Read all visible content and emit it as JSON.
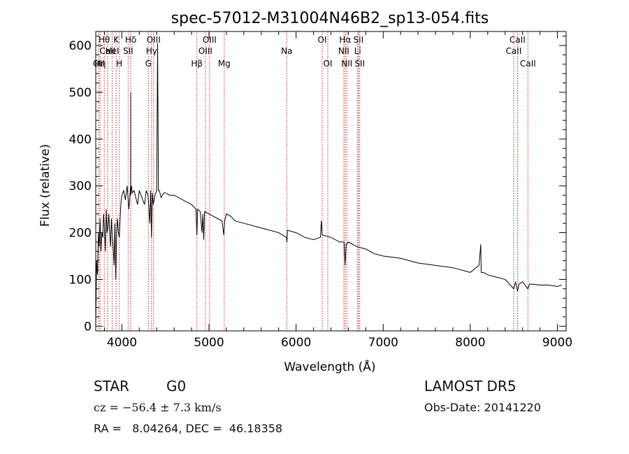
{
  "chart_data": {
    "type": "line",
    "title": "spec-57012-M31004N46B2_sp13-054.fits",
    "xlabel": "Wavelength (Å)",
    "ylabel": "Flux (relative)",
    "xlim": [
      3700,
      9100
    ],
    "ylim": [
      -10,
      630
    ],
    "xticks": [
      4000,
      5000,
      6000,
      7000,
      8000,
      9000
    ],
    "yticks": [
      0,
      100,
      200,
      300,
      400,
      500,
      600
    ],
    "grid": false,
    "series": [
      {
        "x": [
          3700,
          3710,
          3720,
          3730,
          3740,
          3750,
          3760,
          3770,
          3780,
          3790,
          3800,
          3810,
          3820,
          3830,
          3840,
          3850,
          3860,
          3870,
          3880,
          3890,
          3900,
          3910,
          3920,
          3930,
          3940,
          3950,
          3960,
          3970,
          3980,
          3990,
          4000,
          4020,
          4040,
          4060,
          4080,
          4100,
          4101,
          4102,
          4110,
          4120,
          4140,
          4160,
          4180,
          4200,
          4220,
          4240,
          4260,
          4280,
          4300,
          4320,
          4330,
          4340,
          4350,
          4360,
          4380,
          4400,
          4410,
          4420,
          4430,
          4450,
          4480,
          4500,
          4550,
          4600,
          4650,
          4700,
          4750,
          4800,
          4850,
          4861,
          4870,
          4900,
          4920,
          4930,
          4940,
          4950,
          5000,
          5050,
          5100,
          5150,
          5170,
          5180,
          5200,
          5250,
          5300,
          5400,
          5500,
          5600,
          5700,
          5800,
          5890,
          5895,
          5900,
          6000,
          6100,
          6200,
          6280,
          6290,
          6300,
          6400,
          6500,
          6550,
          6563,
          6575,
          6600,
          6700,
          6800,
          6900,
          7000,
          7200,
          7400,
          7600,
          7800,
          8000,
          8100,
          8120,
          8125,
          8130,
          8150,
          8200,
          8300,
          8400,
          8450,
          8498,
          8520,
          8542,
          8560,
          8600,
          8662,
          8680,
          8700,
          8800,
          8900,
          9000,
          9050
        ],
        "values": [
          0,
          140,
          110,
          200,
          170,
          230,
          160,
          200,
          190,
          240,
          210,
          160,
          250,
          200,
          210,
          240,
          200,
          170,
          230,
          190,
          170,
          130,
          220,
          100,
          200,
          230,
          200,
          190,
          230,
          265,
          280,
          290,
          270,
          300,
          250,
          300,
          500,
          280,
          300,
          285,
          290,
          275,
          260,
          290,
          280,
          270,
          260,
          290,
          280,
          220,
          290,
          190,
          285,
          260,
          280,
          290,
          605,
          290,
          290,
          275,
          285,
          285,
          280,
          280,
          275,
          270,
          265,
          260,
          250,
          195,
          250,
          245,
          200,
          240,
          185,
          245,
          240,
          235,
          230,
          225,
          195,
          225,
          240,
          235,
          225,
          220,
          215,
          210,
          205,
          200,
          190,
          180,
          205,
          200,
          190,
          185,
          190,
          225,
          195,
          190,
          180,
          180,
          130,
          175,
          180,
          170,
          165,
          155,
          150,
          145,
          135,
          130,
          125,
          115,
          130,
          175,
          115,
          115,
          115,
          110,
          105,
          100,
          90,
          80,
          95,
          75,
          90,
          95,
          80,
          90,
          90,
          88,
          88,
          85,
          88
        ]
      }
    ],
    "line_markers": [
      {
        "wave": 3734,
        "label": "OII",
        "row": 3
      },
      {
        "wave": 3750,
        "label": "Hη",
        "row": 3
      },
      {
        "wave": 3798,
        "label": "Hθ",
        "row": 1
      },
      {
        "wave": 3835,
        "label": "CaII",
        "row": 2
      },
      {
        "wave": 3889,
        "label": "HeI",
        "row": 2
      },
      {
        "wave": 3934,
        "label": "K",
        "row": 1
      },
      {
        "wave": 3970,
        "label": "H",
        "row": 3
      },
      {
        "wave": 4072,
        "label": "SII",
        "row": 2
      },
      {
        "wave": 4102,
        "label": "Hδ",
        "row": 1
      },
      {
        "wave": 4304,
        "label": "G",
        "row": 3
      },
      {
        "wave": 4340,
        "label": "Hγ",
        "row": 2
      },
      {
        "wave": 4364,
        "label": "OIII",
        "row": 1
      },
      {
        "wave": 4861,
        "label": "Hβ",
        "row": 3
      },
      {
        "wave": 4959,
        "label": "OIII",
        "row": 2
      },
      {
        "wave": 5007,
        "label": "OIII",
        "row": 1
      },
      {
        "wave": 5175,
        "label": "Mg",
        "row": 3
      },
      {
        "wave": 5893,
        "label": "Na",
        "row": 2
      },
      {
        "wave": 6300,
        "label": "OI",
        "row": 1
      },
      {
        "wave": 6364,
        "label": "OI",
        "row": 3
      },
      {
        "wave": 6548,
        "label": "NII",
        "row": 2
      },
      {
        "wave": 6563,
        "label": "Hα",
        "row": 1
      },
      {
        "wave": 6583,
        "label": "NII",
        "row": 3
      },
      {
        "wave": 6707,
        "label": "Li",
        "row": 2
      },
      {
        "wave": 6716,
        "label": "SII",
        "row": 1
      },
      {
        "wave": 6731,
        "label": "SII",
        "row": 3
      },
      {
        "wave": 8498,
        "label": "CaII",
        "row": 2
      },
      {
        "wave": 8542,
        "label": "CaII",
        "row": 1
      },
      {
        "wave": 8662,
        "label": "CaII",
        "row": 3
      }
    ]
  },
  "info": {
    "class_label": "STAR",
    "subclass": "G0",
    "survey": "LAMOST DR5",
    "redshift": "cz = −56.4 ± 7.3 km/s",
    "obs_date": "Obs-Date: 20141220",
    "coords": "RA =   8.04264, DEC =  46.18358"
  },
  "colors": {
    "spectrum": "#000000",
    "marker": "#cc2222",
    "axis": "#000000",
    "background": "#ffffff"
  }
}
